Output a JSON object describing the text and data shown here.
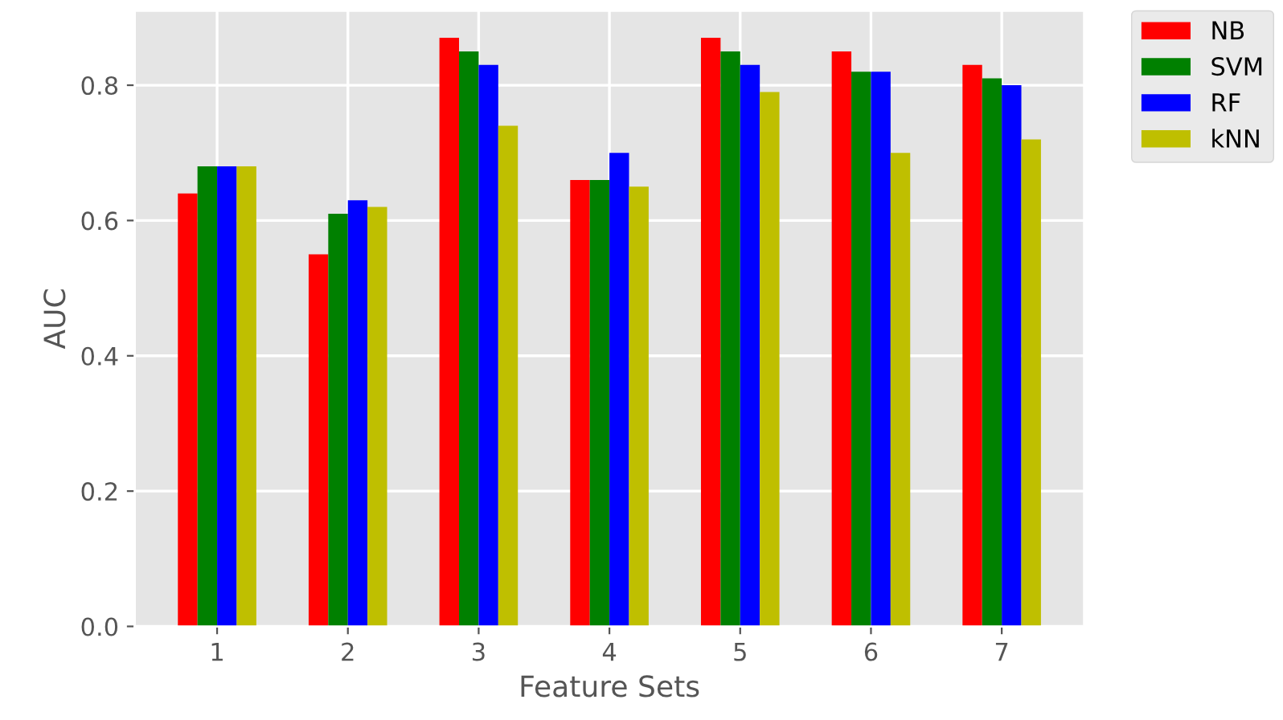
{
  "chart_data": {
    "type": "bar",
    "xlabel": "Feature Sets",
    "ylabel": "AUC",
    "categories": [
      "1",
      "2",
      "3",
      "4",
      "5",
      "6",
      "7"
    ],
    "series": [
      {
        "name": "NB",
        "color": "#ff0000",
        "values": [
          0.64,
          0.55,
          0.87,
          0.66,
          0.87,
          0.85,
          0.83
        ]
      },
      {
        "name": "SVM",
        "color": "#008000",
        "values": [
          0.68,
          0.61,
          0.85,
          0.66,
          0.85,
          0.82,
          0.81
        ]
      },
      {
        "name": "RF",
        "color": "#0000ff",
        "values": [
          0.68,
          0.63,
          0.83,
          0.7,
          0.83,
          0.82,
          0.8
        ]
      },
      {
        "name": "kNN",
        "color": "#bfbf00",
        "values": [
          0.68,
          0.62,
          0.74,
          0.65,
          0.79,
          0.7,
          0.72
        ]
      }
    ],
    "ylim": [
      0,
      0.91
    ],
    "yticks": [
      {
        "value": 0,
        "label": "0.0"
      },
      {
        "value": 0.2,
        "label": "0.2"
      },
      {
        "value": 0.4,
        "label": "0.4"
      },
      {
        "value": 0.6,
        "label": "0.6"
      },
      {
        "value": 0.8,
        "label": "0.8"
      }
    ],
    "grid": true,
    "legend": "top right"
  }
}
